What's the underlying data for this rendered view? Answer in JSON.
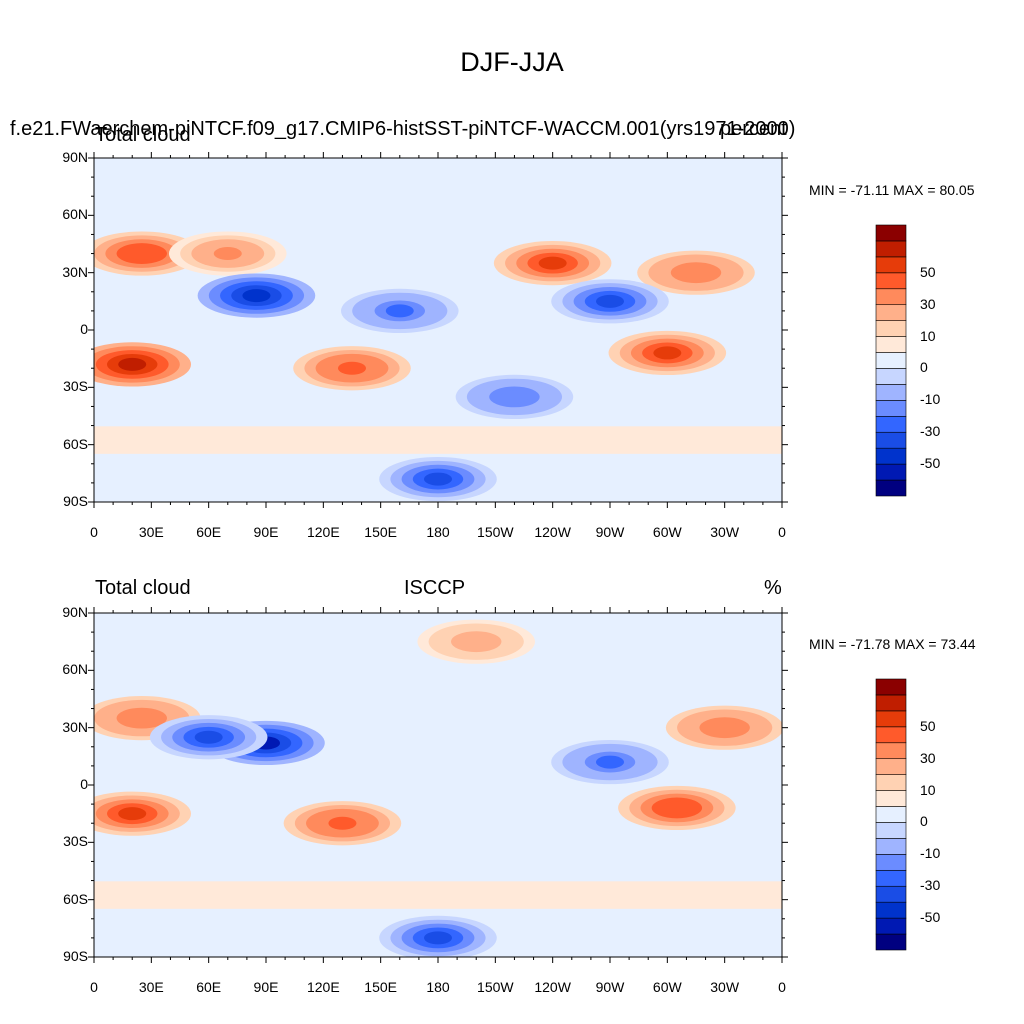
{
  "title": "DJF-JJA",
  "color_levels": [
    "#000080",
    "#0019b3",
    "#0033cc",
    "#1a4de6",
    "#3366ff",
    "#6b8cff",
    "#9fb4ff",
    "#c7d6ff",
    "#e6f0ff",
    "#ffe9d9",
    "#ffd2b3",
    "#ffb08a",
    "#ff8a5c",
    "#ff5a2b",
    "#e63c0a",
    "#c01e00",
    "#8b0000"
  ],
  "colorbar_labels": [
    "50",
    "30",
    "10",
    "0",
    "-10",
    "-30",
    "-50"
  ],
  "lat_labels": [
    "90N",
    "60N",
    "30N",
    "0",
    "30S",
    "60S",
    "90S"
  ],
  "lon_labels": [
    "0",
    "30E",
    "60E",
    "90E",
    "120E",
    "150E",
    "180",
    "150W",
    "120W",
    "90W",
    "60W",
    "30W",
    "0"
  ],
  "panels": [
    {
      "left_title": "Total cloud",
      "overlay_title": "f.e21.FWaerchem-piNTCF.f09_g17.CMIP6-histSST-piNTCF-WACCM.001(yrs1971-2000)",
      "right_title": "percent",
      "min_max": "MIN = -71.11 MAX =  80.05"
    },
    {
      "left_title": "Total cloud",
      "center_title": "ISCCP",
      "right_title": "%",
      "min_max": "MIN = -71.78 MAX =  73.44"
    }
  ],
  "chart_data": [
    {
      "type": "heatmap",
      "title": "DJF-JJA",
      "subtitle": "f.e21.FWaerchem-piNTCF.f09_g17.CMIP6-histSST-piNTCF-WACCM.001(yrs1971-2000)",
      "variable": "Total cloud",
      "units": "percent",
      "min": -71.11,
      "max": 80.05,
      "contour_levels": [
        -70,
        -60,
        -50,
        -40,
        -30,
        -20,
        -10,
        -5,
        0,
        5,
        10,
        20,
        30,
        40,
        50,
        60,
        70
      ],
      "colorbar_tick_labels": [
        50,
        30,
        10,
        0,
        -10,
        -30,
        -50
      ],
      "xlim": [
        0,
        360
      ],
      "ylim": [
        -90,
        90
      ],
      "features": [
        {
          "lon": 25,
          "lat": 40,
          "value": 40
        },
        {
          "lon": 70,
          "lat": 40,
          "value": 25
        },
        {
          "lon": 85,
          "lat": 18,
          "value": -55
        },
        {
          "lon": 20,
          "lat": -18,
          "value": 55
        },
        {
          "lon": 135,
          "lat": -20,
          "value": 35
        },
        {
          "lon": 240,
          "lat": 35,
          "value": 45
        },
        {
          "lon": 315,
          "lat": 30,
          "value": 30
        },
        {
          "lon": 300,
          "lat": -12,
          "value": 45
        },
        {
          "lon": 270,
          "lat": 15,
          "value": -40
        },
        {
          "lon": 160,
          "lat": 10,
          "value": -30
        },
        {
          "lon": 220,
          "lat": -35,
          "value": -25
        },
        {
          "lon": 180,
          "lat": -78,
          "value": -45
        }
      ]
    },
    {
      "type": "heatmap",
      "title": "DJF-JJA",
      "subtitle": "ISCCP",
      "variable": "Total cloud",
      "units": "%",
      "min": -71.78,
      "max": 73.44,
      "contour_levels": [
        -70,
        -60,
        -50,
        -40,
        -30,
        -20,
        -10,
        -5,
        0,
        5,
        10,
        20,
        30,
        40,
        50,
        60,
        70
      ],
      "colorbar_tick_labels": [
        50,
        30,
        10,
        0,
        -10,
        -30,
        -50
      ],
      "xlim": [
        0,
        360
      ],
      "ylim": [
        -90,
        90
      ],
      "features": [
        {
          "lon": 25,
          "lat": 35,
          "value": 30
        },
        {
          "lon": 90,
          "lat": 22,
          "value": -60
        },
        {
          "lon": 60,
          "lat": 25,
          "value": -40
        },
        {
          "lon": 20,
          "lat": -15,
          "value": 50
        },
        {
          "lon": 130,
          "lat": -20,
          "value": 35
        },
        {
          "lon": 305,
          "lat": -12,
          "value": 40
        },
        {
          "lon": 330,
          "lat": 30,
          "value": 30
        },
        {
          "lon": 200,
          "lat": 75,
          "value": 15
        },
        {
          "lon": 270,
          "lat": 12,
          "value": -30
        },
        {
          "lon": 180,
          "lat": -80,
          "value": -45
        }
      ]
    }
  ]
}
